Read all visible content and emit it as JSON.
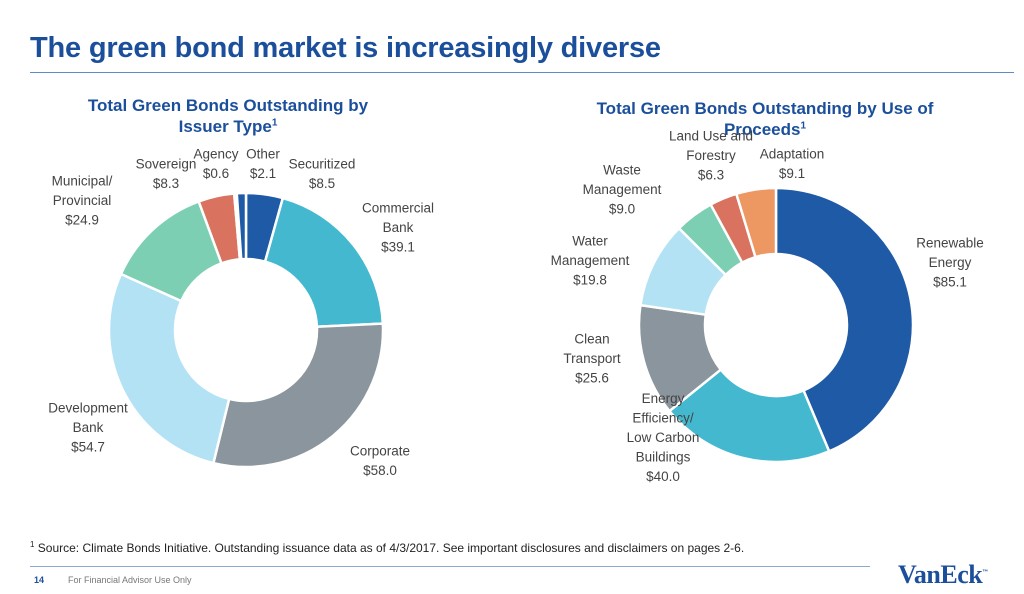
{
  "slide": {
    "title": "The green bond market is increasingly diverse"
  },
  "footnote": {
    "marker": "1",
    "text": " Source: Climate Bonds Initiative. Outstanding issuance data as of 4/3/2017. See important disclosures and disclaimers on pages 2-6."
  },
  "footer": {
    "page_number": "14",
    "text": "For Financial Advisor Use Only",
    "logo_text": "VanEck",
    "logo_tm": "™"
  },
  "chart_data": [
    {
      "type": "pie",
      "donut": true,
      "title": "Total Green Bonds Outstanding by Issuer Type",
      "title_line1": "Total Green Bonds Outstanding by",
      "title_line2": "Issuer Type",
      "title_sup": "1",
      "categories": [
        "Securitized",
        "Commercial Bank",
        "Corporate",
        "Development Bank",
        "Municipal/ Provincial",
        "Sovereign",
        "Agency",
        "Other"
      ],
      "values": [
        8.5,
        39.1,
        58.0,
        54.7,
        24.9,
        8.3,
        0.6,
        2.1
      ],
      "value_labels": [
        "$8.5",
        "$39.1",
        "$58.0",
        "$54.7",
        "$24.9",
        "$8.3",
        "$0.6",
        "$2.1"
      ],
      "label_lines": [
        [
          "Securitized"
        ],
        [
          "Commercial",
          "Bank"
        ],
        [
          "Corporate"
        ],
        [
          "Development",
          "Bank"
        ],
        [
          "Municipal/",
          "Provincial"
        ],
        [
          "Sovereign"
        ],
        [
          "Agency"
        ],
        [
          "Other"
        ]
      ],
      "colors": [
        "#1f5aa6",
        "#43b8cf",
        "#8b959d",
        "#b3e2f4",
        "#7ccfb2",
        "#d9735f",
        "#ed9763",
        "#1f5aa6"
      ]
    },
    {
      "type": "pie",
      "donut": true,
      "title": "Total Green Bonds Outstanding by Use of Proceeds",
      "title_line1": "Total Green Bonds Outstanding by Use of",
      "title_line2": "Proceeds",
      "title_sup": "1",
      "categories": [
        "Renewable Energy",
        "Energy Efficiency/ Low Carbon Buildings",
        "Clean Transport",
        "Water Management",
        "Waste Management",
        "Land Use and Forestry",
        "Adaptation"
      ],
      "values": [
        85.1,
        40.0,
        25.6,
        19.8,
        9.0,
        6.3,
        9.1
      ],
      "value_labels": [
        "$85.1",
        "$40.0",
        "$25.6",
        "$19.8",
        "$9.0",
        "$6.3",
        "$9.1"
      ],
      "label_lines": [
        [
          "Renewable",
          "Energy"
        ],
        [
          "Energy",
          "Efficiency/",
          "Low Carbon",
          "Buildings"
        ],
        [
          "Clean",
          "Transport"
        ],
        [
          "Water",
          "Management"
        ],
        [
          "Waste",
          "Management"
        ],
        [
          "Land Use and",
          "Forestry"
        ],
        [
          "Adaptation"
        ]
      ],
      "colors": [
        "#1f5aa6",
        "#43b8cf",
        "#8b959d",
        "#b3e2f4",
        "#7ccfb2",
        "#d9735f",
        "#ed9763"
      ]
    }
  ]
}
